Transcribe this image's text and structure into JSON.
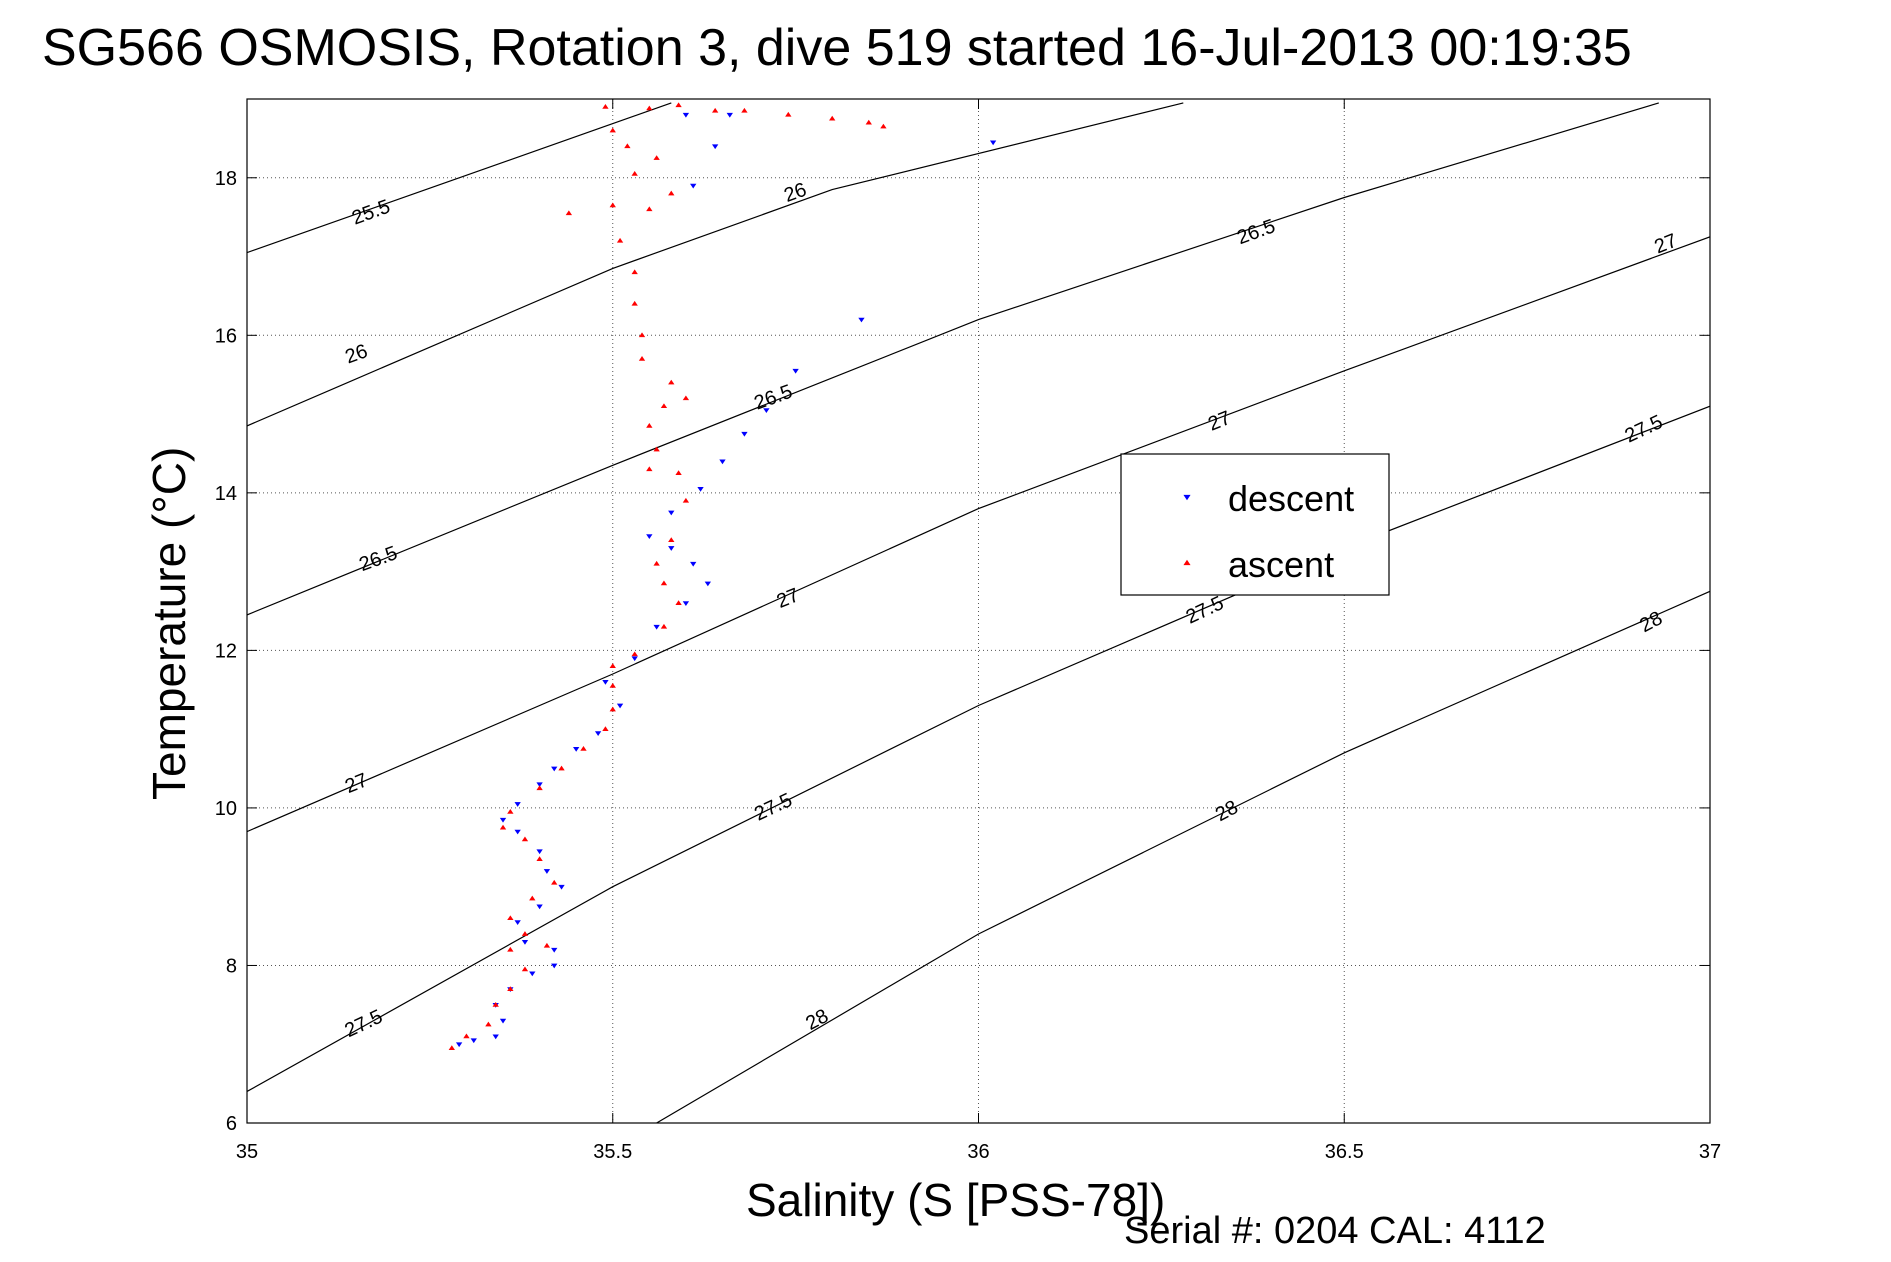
{
  "chart_data": {
    "type": "scatter",
    "title": "SG566 OSMOSIS, Rotation 3, dive 519 started 16-Jul-2013 00:19:35",
    "xlabel": "Salinity (S [PSS-78])",
    "ylabel": "Temperature (°C)",
    "xlim": [
      35,
      37
    ],
    "ylim": [
      6,
      19
    ],
    "xticks": [
      35,
      35.5,
      36,
      36.5,
      37
    ],
    "xtick_labels": [
      "35",
      "35.5",
      "36",
      "36.5",
      "37"
    ],
    "yticks": [
      6,
      8,
      10,
      12,
      14,
      16,
      18
    ],
    "ytick_labels": [
      "6",
      "8",
      "10",
      "12",
      "14",
      "16",
      "18"
    ],
    "grid": true,
    "legend_position": "center-right",
    "footer": "Serial #: 0204  CAL: 4112",
    "density_contours": [
      {
        "level": "25.5",
        "points": [
          [
            35.0,
            17.05
          ],
          [
            35.26,
            17.9
          ],
          [
            35.58,
            18.95
          ]
        ]
      },
      {
        "level": "26",
        "points": [
          [
            35.0,
            14.85
          ],
          [
            35.5,
            16.85
          ],
          [
            35.8,
            17.85
          ],
          [
            36.28,
            18.95
          ]
        ]
      },
      {
        "level": "26.5",
        "points": [
          [
            35.0,
            12.45
          ],
          [
            35.5,
            14.35
          ],
          [
            36.0,
            16.2
          ],
          [
            36.5,
            17.75
          ],
          [
            36.93,
            18.95
          ]
        ]
      },
      {
        "level": "27",
        "points": [
          [
            35.0,
            9.7
          ],
          [
            35.5,
            11.7
          ],
          [
            36.0,
            13.8
          ],
          [
            36.5,
            15.55
          ],
          [
            37.0,
            17.25
          ]
        ]
      },
      {
        "level": "27.5",
        "points": [
          [
            35.0,
            6.4
          ],
          [
            35.5,
            9.0
          ],
          [
            36.0,
            11.3
          ],
          [
            36.5,
            13.3
          ],
          [
            37.0,
            15.1
          ]
        ]
      },
      {
        "level": "28",
        "points": [
          [
            35.56,
            6.0
          ],
          [
            36.0,
            8.4
          ],
          [
            36.5,
            10.7
          ],
          [
            37.0,
            12.75
          ]
        ]
      }
    ],
    "contour_labels": [
      {
        "text": "25.5",
        "x": 35.17,
        "y": 17.55,
        "rot": -20
      },
      {
        "text": "26",
        "x": 35.15,
        "y": 15.75,
        "rot": -20
      },
      {
        "text": "26",
        "x": 35.75,
        "y": 17.8,
        "rot": -20
      },
      {
        "text": "26.5",
        "x": 35.18,
        "y": 13.15,
        "rot": -20
      },
      {
        "text": "26.5",
        "x": 35.72,
        "y": 15.2,
        "rot": -20
      },
      {
        "text": "26.5",
        "x": 36.38,
        "y": 17.3,
        "rot": -20
      },
      {
        "text": "27",
        "x": 35.15,
        "y": 10.3,
        "rot": -22
      },
      {
        "text": "27",
        "x": 35.74,
        "y": 12.65,
        "rot": -22
      },
      {
        "text": "27",
        "x": 36.33,
        "y": 14.9,
        "rot": -22
      },
      {
        "text": "27",
        "x": 36.94,
        "y": 17.15,
        "rot": -22
      },
      {
        "text": "27.5",
        "x": 35.16,
        "y": 7.25,
        "rot": -25
      },
      {
        "text": "27.5",
        "x": 35.72,
        "y": 10.0,
        "rot": -25
      },
      {
        "text": "27.5",
        "x": 36.31,
        "y": 12.5,
        "rot": -25
      },
      {
        "text": "27.5",
        "x": 36.91,
        "y": 14.8,
        "rot": -25
      },
      {
        "text": "28",
        "x": 35.78,
        "y": 7.3,
        "rot": -28
      },
      {
        "text": "28",
        "x": 36.34,
        "y": 9.95,
        "rot": -28
      },
      {
        "text": "28",
        "x": 36.92,
        "y": 12.35,
        "rot": -28
      }
    ],
    "series": [
      {
        "name": "descent",
        "color": "#0000ff",
        "marker": "triangle-down",
        "points": [
          [
            35.29,
            7.0
          ],
          [
            35.31,
            7.05
          ],
          [
            35.34,
            7.1
          ],
          [
            35.35,
            7.3
          ],
          [
            35.34,
            7.5
          ],
          [
            35.36,
            7.7
          ],
          [
            35.39,
            7.9
          ],
          [
            35.42,
            8.0
          ],
          [
            35.42,
            8.2
          ],
          [
            35.38,
            8.3
          ],
          [
            35.37,
            8.55
          ],
          [
            35.4,
            8.75
          ],
          [
            35.43,
            9.0
          ],
          [
            35.41,
            9.2
          ],
          [
            35.4,
            9.45
          ],
          [
            35.37,
            9.7
          ],
          [
            35.35,
            9.85
          ],
          [
            35.37,
            10.05
          ],
          [
            35.4,
            10.3
          ],
          [
            35.42,
            10.5
          ],
          [
            35.45,
            10.75
          ],
          [
            35.48,
            10.95
          ],
          [
            35.51,
            11.3
          ],
          [
            35.49,
            11.6
          ],
          [
            35.53,
            11.9
          ],
          [
            35.56,
            12.3
          ],
          [
            35.6,
            12.6
          ],
          [
            35.63,
            12.85
          ],
          [
            35.61,
            13.1
          ],
          [
            35.58,
            13.3
          ],
          [
            35.55,
            13.45
          ],
          [
            35.58,
            13.75
          ],
          [
            35.62,
            14.05
          ],
          [
            35.65,
            14.4
          ],
          [
            35.68,
            14.75
          ],
          [
            35.71,
            15.05
          ],
          [
            35.75,
            15.55
          ],
          [
            35.84,
            16.2
          ],
          [
            35.61,
            17.9
          ],
          [
            35.64,
            18.4
          ],
          [
            35.6,
            18.8
          ],
          [
            35.66,
            18.8
          ],
          [
            36.02,
            18.45
          ]
        ]
      },
      {
        "name": "ascent",
        "color": "#ff0000",
        "marker": "triangle-up",
        "points": [
          [
            35.28,
            6.95
          ],
          [
            35.3,
            7.1
          ],
          [
            35.33,
            7.25
          ],
          [
            35.34,
            7.5
          ],
          [
            35.36,
            7.7
          ],
          [
            35.38,
            7.95
          ],
          [
            35.36,
            8.2
          ],
          [
            35.41,
            8.25
          ],
          [
            35.38,
            8.4
          ],
          [
            35.36,
            8.6
          ],
          [
            35.39,
            8.85
          ],
          [
            35.42,
            9.05
          ],
          [
            35.4,
            9.35
          ],
          [
            35.38,
            9.6
          ],
          [
            35.35,
            9.75
          ],
          [
            35.36,
            9.95
          ],
          [
            35.4,
            10.25
          ],
          [
            35.43,
            10.5
          ],
          [
            35.46,
            10.75
          ],
          [
            35.49,
            11.0
          ],
          [
            35.5,
            11.25
          ],
          [
            35.5,
            11.55
          ],
          [
            35.5,
            11.8
          ],
          [
            35.53,
            11.95
          ],
          [
            35.57,
            12.3
          ],
          [
            35.59,
            12.6
          ],
          [
            35.57,
            12.85
          ],
          [
            35.56,
            13.1
          ],
          [
            35.58,
            13.4
          ],
          [
            35.6,
            13.9
          ],
          [
            35.59,
            14.25
          ],
          [
            35.55,
            14.3
          ],
          [
            35.56,
            14.55
          ],
          [
            35.55,
            14.85
          ],
          [
            35.57,
            15.1
          ],
          [
            35.6,
            15.2
          ],
          [
            35.58,
            15.4
          ],
          [
            35.54,
            15.7
          ],
          [
            35.54,
            16.0
          ],
          [
            35.53,
            16.4
          ],
          [
            35.53,
            16.8
          ],
          [
            35.51,
            17.2
          ],
          [
            35.44,
            17.55
          ],
          [
            35.5,
            17.65
          ],
          [
            35.55,
            17.6
          ],
          [
            35.58,
            17.8
          ],
          [
            35.53,
            18.05
          ],
          [
            35.56,
            18.25
          ],
          [
            35.52,
            18.4
          ],
          [
            35.5,
            18.6
          ],
          [
            35.55,
            18.88
          ],
          [
            35.59,
            18.92
          ],
          [
            35.64,
            18.85
          ],
          [
            35.68,
            18.85
          ],
          [
            35.74,
            18.8
          ],
          [
            35.8,
            18.75
          ],
          [
            35.87,
            18.65
          ],
          [
            35.85,
            18.7
          ],
          [
            35.49,
            18.9
          ]
        ]
      }
    ]
  }
}
